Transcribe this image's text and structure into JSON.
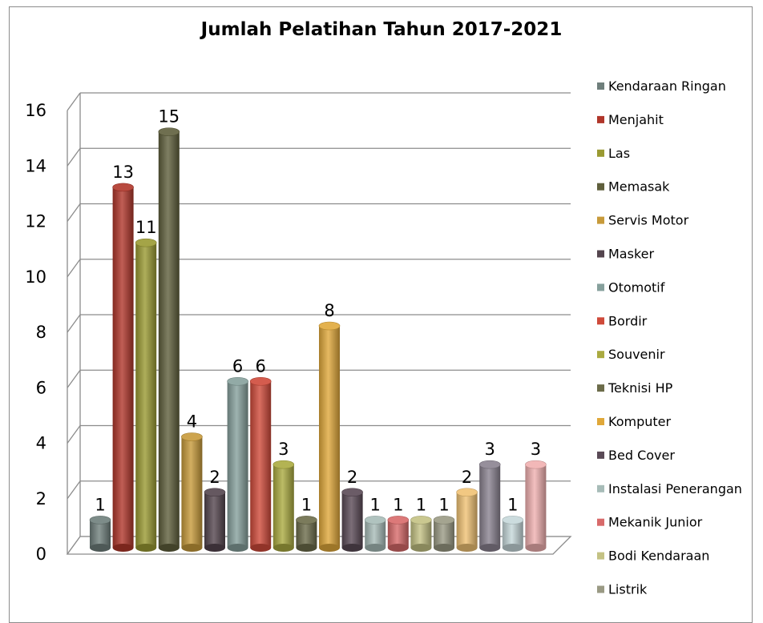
{
  "chart_data": {
    "type": "bar",
    "title": "Jumlah Pelatihan Tahun 2017-2021",
    "xlabel": "",
    "ylabel": "",
    "ylim": [
      0,
      16
    ],
    "yticks": [
      "0",
      "2",
      "4",
      "6",
      "8",
      "10",
      "12",
      "14",
      "16"
    ],
    "grid": true,
    "legend": "right",
    "categories": [
      "Kendaraan Ringan",
      "Menjahit",
      "Las",
      "Memasak",
      "Servis Motor",
      "Masker",
      "Otomotif",
      "Bordir",
      "Souvenir",
      "Teknisi HP",
      "Komputer",
      "Bed Cover",
      "Instalasi Penerangan",
      "Mekanik Junior",
      "Bodi Kendaraan",
      "Listrik",
      "",
      "",
      "",
      ""
    ],
    "values": [
      1,
      13,
      11,
      15,
      4,
      2,
      6,
      6,
      3,
      1,
      8,
      2,
      1,
      1,
      1,
      1,
      2,
      3,
      1,
      3
    ],
    "colors": [
      "#6f7f7c",
      "#b0362a",
      "#9a9a32",
      "#5f5f3c",
      "#c79a3a",
      "#54454e",
      "#86a09c",
      "#cf4a3a",
      "#aaaa40",
      "#6c6c4a",
      "#e0a83a",
      "#5a4a56",
      "#a7bcb8",
      "#d86a6a",
      "#c4c284",
      "#9a9a84",
      "#f0c274",
      "#8a8290",
      "#c6d8da",
      "#f0b0b0"
    ]
  }
}
